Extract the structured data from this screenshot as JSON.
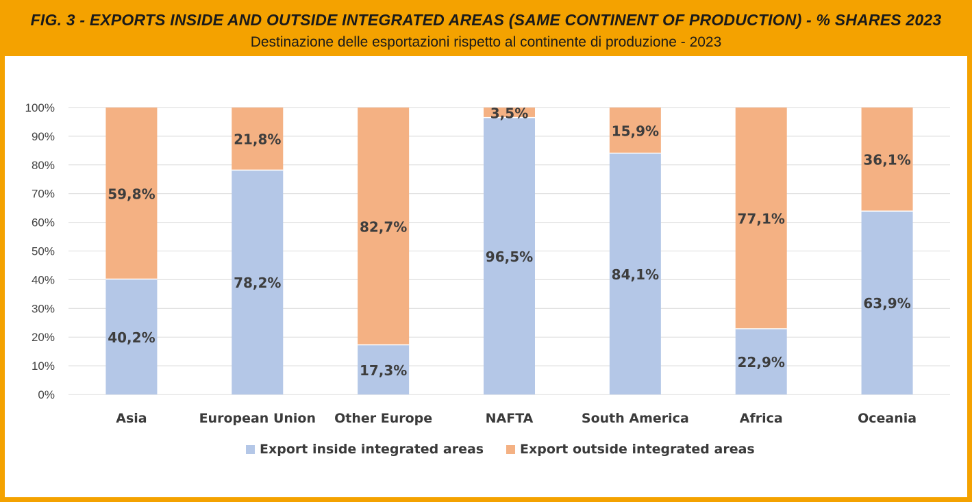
{
  "header": {
    "title": "FIG. 3 - EXPORTS INSIDE AND OUTSIDE INTEGRATED AREAS (SAME CONTINENT OF PRODUCTION) - % SHARES 2023",
    "subtitle": "Destinazione delle esportazioni rispetto al continente di produzione - 2023"
  },
  "colors": {
    "frame": "#f4a200",
    "inside": "#b4c7e7",
    "outside": "#f4b183"
  },
  "chart_data": {
    "type": "bar",
    "stacked": true,
    "percent": true,
    "categories": [
      "Asia",
      "European Union",
      "Other Europe",
      "NAFTA",
      "South America",
      "Africa",
      "Oceania"
    ],
    "series": [
      {
        "name": "Export inside integrated areas",
        "values": [
          40.2,
          78.2,
          17.3,
          96.5,
          84.1,
          22.9,
          63.9
        ],
        "labels": [
          "40,2%",
          "78,2%",
          "17,3%",
          "96,5%",
          "84,1%",
          "22,9%",
          "63,9%"
        ],
        "color": "#b4c7e7"
      },
      {
        "name": "Export outside integrated areas",
        "values": [
          59.8,
          21.8,
          82.7,
          3.5,
          15.9,
          77.1,
          36.1
        ],
        "labels": [
          "59,8%",
          "21,8%",
          "82,7%",
          "3,5%",
          "15,9%",
          "77,1%",
          "36,1%"
        ],
        "color": "#f4b183"
      }
    ],
    "ylim": [
      0,
      100
    ],
    "yticks": [
      "0%",
      "10%",
      "20%",
      "30%",
      "40%",
      "50%",
      "60%",
      "70%",
      "80%",
      "90%",
      "100%"
    ],
    "grid": true,
    "legend": "bottom"
  }
}
